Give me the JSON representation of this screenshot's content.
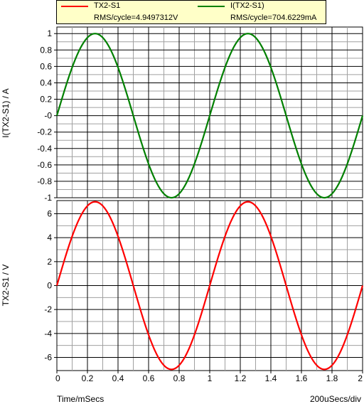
{
  "legend": {
    "entries": [
      {
        "name": "TX2-S1",
        "rms": "RMS/cycle=4.9497312V",
        "color": "#ff0000"
      },
      {
        "name": "I(TX2-S1)",
        "rms": "RMS/cycle=704.6229mA",
        "color": "#008000"
      }
    ]
  },
  "footer": {
    "xlabel": "Time/mSecs",
    "scale": "200uSecs/div"
  },
  "chart_data": [
    {
      "type": "line",
      "ylabel": "I(TX2-S1) / A",
      "xlim": [
        0,
        2
      ],
      "ylim": [
        -1,
        1.08
      ],
      "yticks": [
        "1",
        "0.8",
        "0.6",
        "0.4",
        "0.2",
        "-0",
        "-0.2",
        "-0.4",
        "-0.6",
        "-0.8",
        "-1"
      ],
      "ytick_values": [
        1,
        0.8,
        0.6,
        0.4,
        0.2,
        0,
        -0.2,
        -0.4,
        -0.6,
        -0.8,
        -1
      ],
      "grid": true,
      "series": [
        {
          "name": "I(TX2-S1)",
          "color": "#008000",
          "waveform": "sine",
          "amplitude": 1.0,
          "period": 1.0,
          "phase": 0
        }
      ]
    },
    {
      "type": "line",
      "ylabel": "TX2-S1 / V",
      "xlim": [
        0,
        2
      ],
      "ylim": [
        -7.1,
        7.1
      ],
      "xticks": [
        "0",
        "0.2",
        "0.4",
        "0.6",
        "0.8",
        "1",
        "1.2",
        "1.4",
        "1.6",
        "1.8",
        "2"
      ],
      "xtick_values": [
        0,
        0.2,
        0.4,
        0.6,
        0.8,
        1.0,
        1.2,
        1.4,
        1.6,
        1.8,
        2.0
      ],
      "yticks": [
        "6",
        "4",
        "2",
        "0",
        "-2",
        "-4",
        "-6"
      ],
      "ytick_values": [
        6,
        4,
        2,
        0,
        -2,
        -4,
        -6
      ],
      "grid": true,
      "series": [
        {
          "name": "TX2-S1",
          "color": "#ff0000",
          "waveform": "sine",
          "amplitude": 7.0,
          "period": 1.0,
          "phase": 0
        }
      ]
    }
  ]
}
